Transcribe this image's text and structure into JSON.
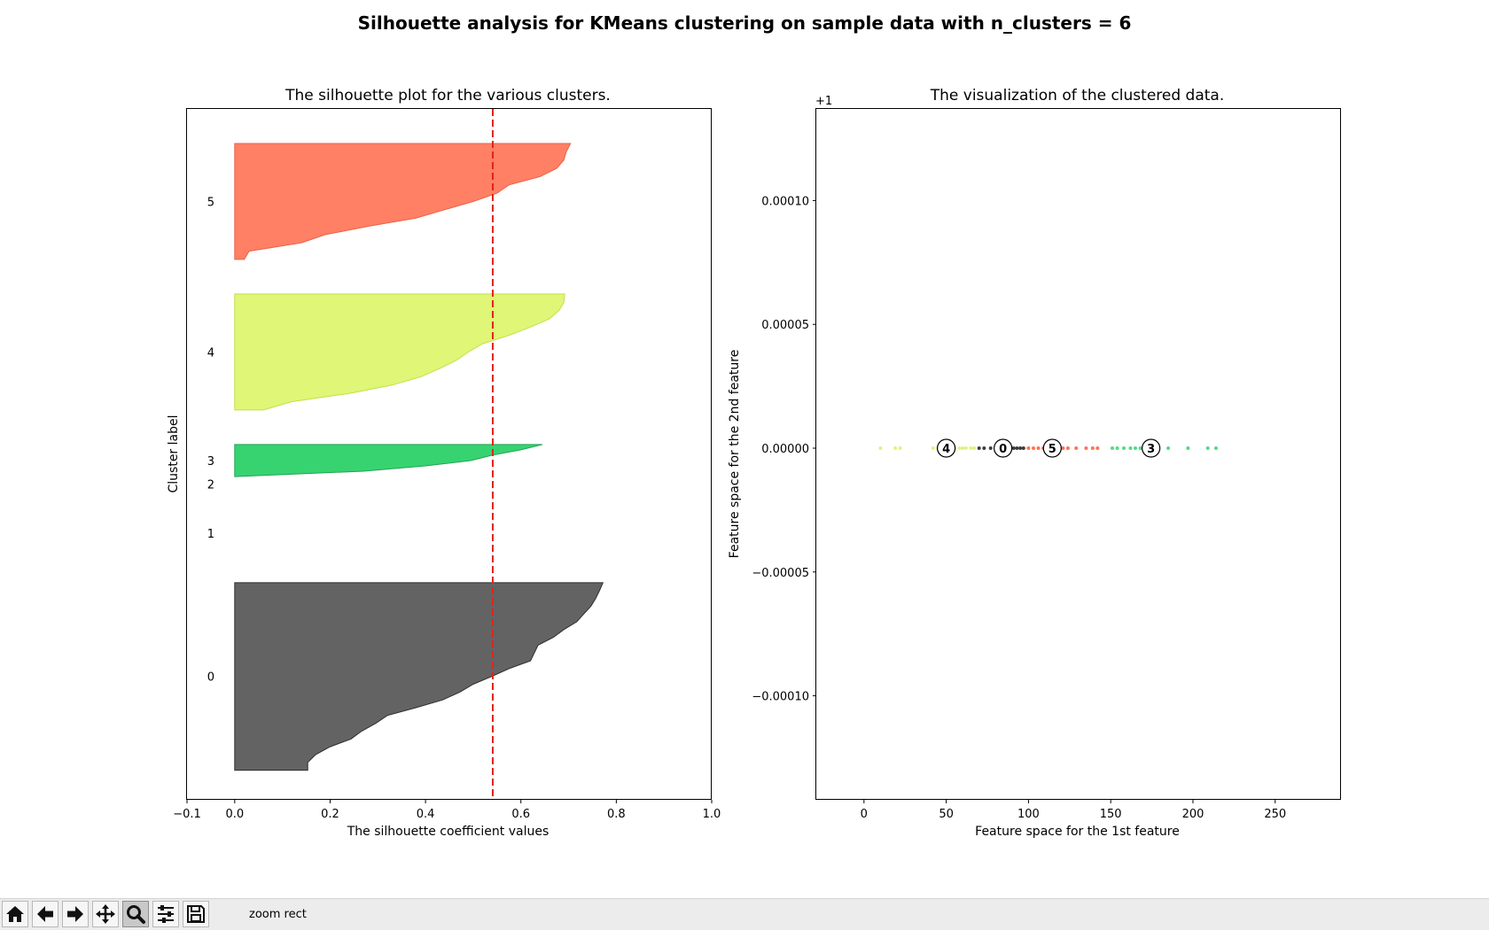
{
  "figure": {
    "suptitle": "Silhouette analysis for KMeans clustering on sample data with n_clusters = 6"
  },
  "chart_data": [
    {
      "type": "area",
      "title": "The silhouette plot for the various clusters.",
      "xlabel": "The silhouette coefficient values",
      "ylabel": "Cluster label",
      "xlim": [
        -0.1,
        1.0
      ],
      "ylim": [
        0,
        140
      ],
      "xticks": [
        "−0.1",
        "0.0",
        "0.2",
        "0.4",
        "0.6",
        "0.8",
        "1.0"
      ],
      "grid": false,
      "silhouette_avg": 0.541,
      "clusters": [
        {
          "label": "0",
          "color": "#636363",
          "edge": "#2e2e2e",
          "y_lower": 6,
          "y_upper": 44,
          "values": [
            0.153,
            0.153,
            0.17,
            0.2,
            0.244,
            0.266,
            0.296,
            0.32,
            0.38,
            0.436,
            0.472,
            0.5,
            0.539,
            0.575,
            0.62,
            0.628,
            0.636,
            0.668,
            0.69,
            0.717,
            0.732,
            0.747,
            0.757,
            0.765,
            0.772
          ]
        },
        {
          "label": "1",
          "color": "#7a5aa8",
          "edge": "#4d3a6a",
          "y_lower": 54,
          "y_upper": 54,
          "values": []
        },
        {
          "label": "2",
          "color": "#2b7fd6",
          "edge": "#1f5a96",
          "y_lower": 64,
          "y_upper": 64,
          "values": []
        },
        {
          "label": "3",
          "color": "#37d371",
          "edge": "#22a552",
          "y_lower": 65.5,
          "y_upper": 72,
          "values": [
            0.0,
            0.27,
            0.4,
            0.495,
            0.54,
            0.6,
            0.645
          ]
        },
        {
          "label": "4",
          "color": "#dff676",
          "edge": "#c2e04c",
          "y_lower": 79,
          "y_upper": 102.5,
          "values": [
            0.06,
            0.12,
            0.24,
            0.33,
            0.39,
            0.43,
            0.465,
            0.49,
            0.52,
            0.575,
            0.62,
            0.66,
            0.68,
            0.69,
            0.692
          ]
        },
        {
          "label": "5",
          "color": "#ff8064",
          "edge": "#e8634a",
          "y_lower": 109.5,
          "y_upper": 133,
          "values": [
            0.02,
            0.03,
            0.14,
            0.19,
            0.28,
            0.38,
            0.44,
            0.5,
            0.55,
            0.575,
            0.64,
            0.675,
            0.69,
            0.695,
            0.704
          ]
        }
      ]
    },
    {
      "type": "scatter",
      "title": "The visualization of the clustered data.",
      "xlabel": "Feature space for the 1st feature",
      "ylabel": "Feature space for the 2nd feature",
      "xlim": [
        -29,
        290
      ],
      "ylim": [
        -0.000142,
        0.000137
      ],
      "offset_label": "+1",
      "xticks": [
        "0",
        "50",
        "100",
        "150",
        "200",
        "250"
      ],
      "yticks": [
        "−0.00010",
        "−0.00005",
        "0.00000",
        "0.00005",
        "0.00010"
      ],
      "grid": false,
      "series": [
        {
          "cluster": "4",
          "color": "#d9f268",
          "x": [
            10,
            19,
            22,
            42,
            45,
            48,
            55,
            58,
            60,
            62,
            65,
            67
          ]
        },
        {
          "cluster": "0",
          "color": "#1c1c1c",
          "x": [
            70,
            73,
            77,
            80,
            83,
            88,
            91,
            93,
            95,
            97
          ]
        },
        {
          "cluster": "5",
          "color": "#ff5a36",
          "x": [
            100,
            103,
            106,
            109,
            112,
            118,
            121,
            124,
            129,
            135,
            139,
            142
          ]
        },
        {
          "cluster": "3",
          "color": "#36d36c",
          "x": [
            151,
            154,
            158,
            162,
            165,
            168,
            173,
            177,
            185,
            197,
            209,
            214
          ]
        }
      ],
      "centers": [
        {
          "label": "4",
          "x": 50,
          "y": 0
        },
        {
          "label": "0",
          "x": 84.5,
          "y": 0
        },
        {
          "label": "5",
          "x": 114.5,
          "y": 0
        },
        {
          "label": "3",
          "x": 174.5,
          "y": 0
        }
      ]
    }
  ],
  "toolbar": {
    "buttons": [
      {
        "name": "home-button",
        "icon": "home-icon",
        "active": false
      },
      {
        "name": "back-button",
        "icon": "arrow-left-icon",
        "active": false
      },
      {
        "name": "forward-button",
        "icon": "arrow-right-icon",
        "active": false
      },
      {
        "name": "pan-button",
        "icon": "move-icon",
        "active": false
      },
      {
        "name": "zoom-button",
        "icon": "magnifier-icon",
        "active": true
      },
      {
        "name": "configure-subplots-button",
        "icon": "sliders-icon",
        "active": false
      },
      {
        "name": "save-button",
        "icon": "floppy-disk-icon",
        "active": false
      }
    ],
    "message": "zoom rect"
  }
}
